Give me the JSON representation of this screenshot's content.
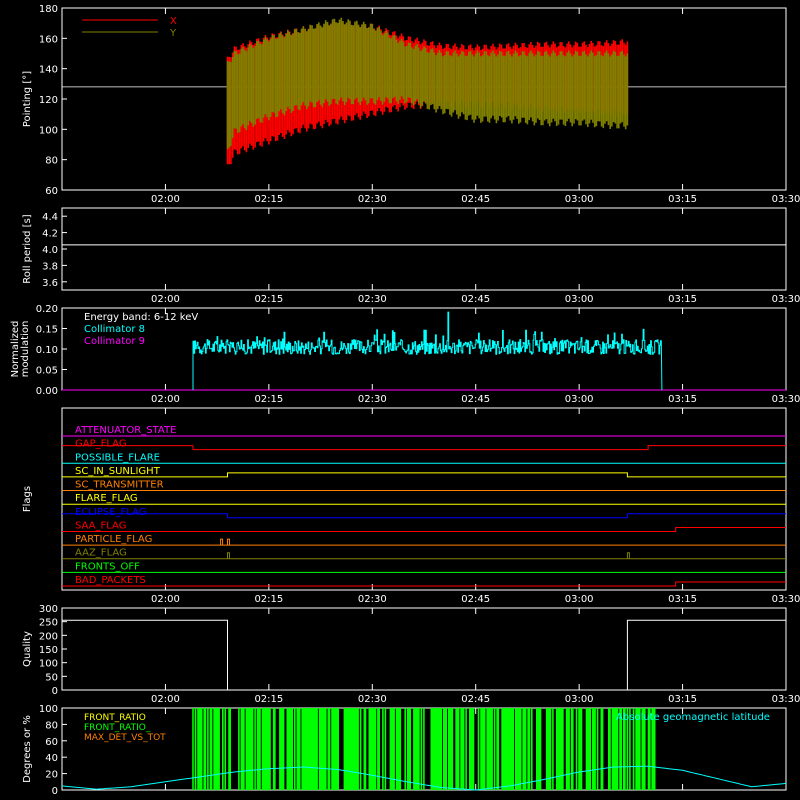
{
  "time_ticks": [
    "02:00",
    "02:15",
    "02:30",
    "02:45",
    "03:00",
    "03:15",
    "03:30"
  ],
  "colors": {
    "X": "#ff0000",
    "Y": "#808000",
    "axis": "#ffffff",
    "cyan": "#00ffff",
    "magenta": "#ff00ff",
    "green": "#00ff00",
    "yellow": "#ffff00",
    "orange": "#ff8000",
    "blue": "#0000ff",
    "red": "#ff0000"
  },
  "chart_data": [
    {
      "id": "pointing",
      "type": "area",
      "ylabel": "Pointing [°]",
      "ylim": [
        60,
        180
      ],
      "yticks": [
        "60",
        "80",
        "100",
        "120",
        "140",
        "160",
        "180"
      ],
      "xlim": [
        "01:45",
        "03:30"
      ],
      "reference_line": 128,
      "legend": [
        {
          "name": "X",
          "color": "#ff0000"
        },
        {
          "name": "Y",
          "color": "#808000"
        }
      ],
      "series": [
        {
          "name": "X",
          "x": [
            "02:09",
            "02:10",
            "02:15",
            "02:20",
            "02:25",
            "02:30",
            "02:35",
            "02:40",
            "02:45",
            "02:50",
            "02:55",
            "03:00",
            "03:05",
            "03:07"
          ],
          "upper": [
            148,
            155,
            163,
            168,
            172,
            170,
            162,
            157,
            156,
            157,
            158,
            158,
            159,
            160
          ],
          "lower": [
            72,
            82,
            90,
            98,
            103,
            108,
            113,
            114,
            114,
            113,
            111,
            110,
            108,
            108
          ]
        },
        {
          "name": "Y",
          "x": [
            "02:09",
            "02:10",
            "02:15",
            "02:20",
            "02:25",
            "02:30",
            "02:35",
            "02:40",
            "02:45",
            "02:50",
            "02:55",
            "03:00",
            "03:05",
            "03:07"
          ],
          "upper": [
            145,
            152,
            162,
            168,
            174,
            170,
            158,
            152,
            152,
            152,
            152,
            152,
            152,
            152
          ],
          "lower": [
            82,
            96,
            106,
            113,
            116,
            116,
            117,
            110,
            104,
            104,
            102,
            102,
            100,
            100
          ]
        }
      ]
    },
    {
      "id": "roll",
      "type": "line",
      "ylabel": "Roll period [s]",
      "ylim": [
        3.5,
        4.5
      ],
      "yticks": [
        "3.6",
        "3.8",
        "4.0",
        "4.2",
        "4.4"
      ],
      "series": [
        {
          "name": "roll period",
          "x": [
            "01:45",
            "03:30"
          ],
          "y": [
            4.05,
            4.05
          ]
        }
      ]
    },
    {
      "id": "modulation",
      "type": "line",
      "ylabel": "Normalized modulation",
      "ylim": [
        0,
        0.2
      ],
      "yticks": [
        "0.00",
        "0.05",
        "0.10",
        "0.15",
        "0.20"
      ],
      "annotation": "Energy band: 6-12 keV",
      "legend": [
        {
          "name": "Collimator 8",
          "color": "#00ffff"
        },
        {
          "name": "Collimator 9",
          "color": "#ff00ff"
        }
      ],
      "series": [
        {
          "name": "Collimator 8",
          "x_start": "02:04",
          "x_end": "03:12",
          "mean": 0.105,
          "spread": 0.018,
          "peak": {
            "x": "02:41",
            "y": 0.19
          }
        },
        {
          "name": "Collimator 9",
          "x": [
            "01:45",
            "03:30"
          ],
          "y": [
            0,
            0
          ]
        }
      ]
    },
    {
      "id": "flags",
      "type": "line",
      "ylabel": "Flags",
      "series": [
        {
          "name": "ATTENUATOR_STATE",
          "color": "#ff00ff",
          "steps": [
            [
              "01:45",
              0
            ],
            [
              "03:30",
              0
            ]
          ]
        },
        {
          "name": "GAP_FLAG",
          "color": "#ff0000",
          "steps": [
            [
              "01:45",
              1
            ],
            [
              "02:04",
              0
            ],
            [
              "03:10",
              1
            ]
          ]
        },
        {
          "name": "POSSIBLE_FLARE",
          "color": "#00ffff",
          "steps": [
            [
              "01:45",
              0
            ]
          ]
        },
        {
          "name": "SC_IN_SUNLIGHT",
          "color": "#ffff00",
          "steps": [
            [
              "01:45",
              0
            ],
            [
              "02:09",
              1
            ],
            [
              "03:07",
              0
            ]
          ]
        },
        {
          "name": "SC_TRANSMITTER",
          "color": "#ff8000",
          "steps": [
            [
              "01:45",
              0
            ]
          ]
        },
        {
          "name": "FLARE_FLAG",
          "color": "#ffff00",
          "steps": [
            [
              "01:45",
              0
            ]
          ]
        },
        {
          "name": "ECLIPSE_FLAG",
          "color": "#0000ff",
          "steps": [
            [
              "01:45",
              1
            ],
            [
              "02:09",
              0
            ],
            [
              "03:07",
              1
            ]
          ]
        },
        {
          "name": "SAA_FLAG",
          "color": "#ff0000",
          "steps": [
            [
              "01:45",
              0
            ],
            [
              "03:14",
              1
            ]
          ]
        },
        {
          "name": "PARTICLE_FLAG",
          "color": "#ff8000",
          "steps": [
            [
              "01:45",
              0
            ]
          ],
          "spikes": [
            "02:08",
            "02:09"
          ]
        },
        {
          "name": "AAZ_FLAG",
          "color": "#808000",
          "steps": [
            [
              "01:45",
              0
            ]
          ],
          "spikes": [
            "02:09",
            "03:07"
          ]
        },
        {
          "name": "FRONTS_OFF",
          "color": "#00ff00",
          "steps": [
            [
              "01:45",
              0
            ]
          ]
        },
        {
          "name": "BAD_PACKETS",
          "color": "#ff0000",
          "steps": [
            [
              "01:45",
              0
            ],
            [
              "03:14",
              1
            ]
          ]
        }
      ]
    },
    {
      "id": "quality",
      "type": "line",
      "ylabel": "Quality",
      "ylim": [
        0,
        300
      ],
      "yticks": [
        "0",
        "50",
        "100",
        "150",
        "200",
        "250",
        "300"
      ],
      "series": [
        {
          "name": "quality",
          "steps": [
            [
              "01:45",
              255
            ],
            [
              "02:09",
              0
            ],
            [
              "03:07",
              255
            ]
          ]
        }
      ]
    },
    {
      "id": "degrees",
      "type": "bar",
      "ylabel": "Degrees or %",
      "ylim": [
        0,
        100
      ],
      "yticks": [
        "0",
        "20",
        "40",
        "60",
        "80",
        "100"
      ],
      "legend": [
        {
          "name": "FRONT_RATIO",
          "color": "#ffff00"
        },
        {
          "name": "FRONT_RATIO_",
          "color": "#00ff00"
        },
        {
          "name": "MAX_DET_VS_TOT",
          "color": "#ff8000"
        },
        {
          "name": "Absolute geomagnetic latitude",
          "color": "#00ffff"
        }
      ],
      "series": [
        {
          "name": "FRONT_RATIO_",
          "x_start": "02:04",
          "x_end": "03:12",
          "value": 100
        },
        {
          "name": "Absolute geomagnetic latitude",
          "x": [
            "01:45",
            "01:50",
            "01:55",
            "02:00",
            "02:05",
            "02:10",
            "02:15",
            "02:20",
            "02:25",
            "02:30",
            "02:35",
            "02:40",
            "02:45",
            "02:50",
            "02:55",
            "03:00",
            "03:05",
            "03:10",
            "03:15",
            "03:20",
            "03:25",
            "03:30"
          ],
          "y": [
            5,
            1,
            4,
            10,
            16,
            22,
            26,
            28,
            25,
            18,
            10,
            3,
            0,
            5,
            13,
            22,
            28,
            29,
            24,
            14,
            4,
            8
          ]
        }
      ]
    }
  ]
}
